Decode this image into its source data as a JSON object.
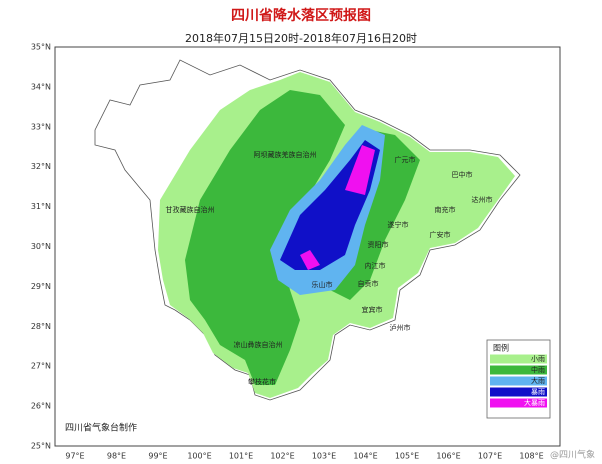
{
  "header": {
    "title": "四川省降水落区预报图",
    "subtitle": "2018年07月15日20时-2018年07月16日20时"
  },
  "lat_ticks": [
    "35°N",
    "34°N",
    "33°N",
    "32°N",
    "31°N",
    "30°N",
    "29°N",
    "28°N",
    "27°N",
    "26°N",
    "25°N"
  ],
  "lon_ticks": [
    "97°E",
    "98°E",
    "99°E",
    "100°E",
    "101°E",
    "102°E",
    "103°E",
    "104°E",
    "105°E",
    "106°E",
    "107°E",
    "108°E"
  ],
  "places": [
    "阿坝藏族羌族自治州",
    "甘孜藏族自治州",
    "凉山彝族自治州",
    "攀枝花市",
    "广元市",
    "巴中市",
    "达州市",
    "南充市",
    "遂宁市",
    "广安市",
    "资阳市",
    "内江市",
    "自贡市",
    "乐山市",
    "宜宾市",
    "泸州市"
  ],
  "legend": {
    "title": "图例",
    "items": [
      {
        "label": "小雨",
        "color": "#a8f08c"
      },
      {
        "label": "中雨",
        "color": "#3cb83c"
      },
      {
        "label": "大雨",
        "color": "#60b4f0"
      },
      {
        "label": "暴雨",
        "color": "#1010c8"
      },
      {
        "label": "大暴雨",
        "color": "#f010f0"
      }
    ]
  },
  "credit": "四川省气象台制作",
  "watermark": "@四川气象"
}
